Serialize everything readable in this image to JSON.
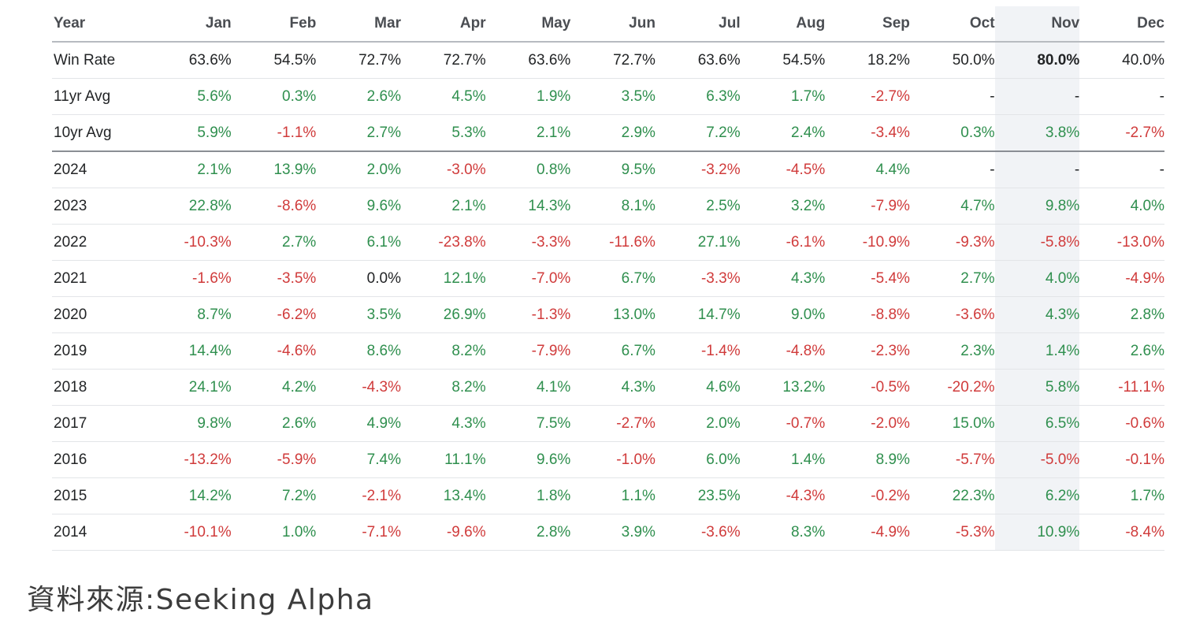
{
  "chart_data": {
    "type": "table",
    "title": "",
    "columns": [
      "Year",
      "Jan",
      "Feb",
      "Mar",
      "Apr",
      "May",
      "Jun",
      "Jul",
      "Aug",
      "Sep",
      "Oct",
      "Nov",
      "Dec"
    ],
    "highlight_column": "Nov",
    "rows": [
      {
        "label": "Win Rate",
        "values": [
          "63.6%",
          "54.5%",
          "72.7%",
          "72.7%",
          "63.6%",
          "72.7%",
          "63.6%",
          "54.5%",
          "18.2%",
          "50.0%",
          "80.0%",
          "40.0%"
        ]
      },
      {
        "label": "11yr Avg",
        "values": [
          "5.6%",
          "0.3%",
          "2.6%",
          "4.5%",
          "1.9%",
          "3.5%",
          "6.3%",
          "1.7%",
          "-2.7%",
          "-",
          "-",
          "-"
        ]
      },
      {
        "label": "10yr Avg",
        "values": [
          "5.9%",
          "-1.1%",
          "2.7%",
          "5.3%",
          "2.1%",
          "2.9%",
          "7.2%",
          "2.4%",
          "-3.4%",
          "0.3%",
          "3.8%",
          "-2.7%"
        ]
      },
      {
        "label": "2024",
        "values": [
          "2.1%",
          "13.9%",
          "2.0%",
          "-3.0%",
          "0.8%",
          "9.5%",
          "-3.2%",
          "-4.5%",
          "4.4%",
          "-",
          "-",
          "-"
        ]
      },
      {
        "label": "2023",
        "values": [
          "22.8%",
          "-8.6%",
          "9.6%",
          "2.1%",
          "14.3%",
          "8.1%",
          "2.5%",
          "3.2%",
          "-7.9%",
          "4.7%",
          "9.8%",
          "4.0%"
        ]
      },
      {
        "label": "2022",
        "values": [
          "-10.3%",
          "2.7%",
          "6.1%",
          "-23.8%",
          "-3.3%",
          "-11.6%",
          "27.1%",
          "-6.1%",
          "-10.9%",
          "-9.3%",
          "-5.8%",
          "-13.0%"
        ]
      },
      {
        "label": "2021",
        "values": [
          "-1.6%",
          "-3.5%",
          "0.0%",
          "12.1%",
          "-7.0%",
          "6.7%",
          "-3.3%",
          "4.3%",
          "-5.4%",
          "2.7%",
          "4.0%",
          "-4.9%"
        ]
      },
      {
        "label": "2020",
        "values": [
          "8.7%",
          "-6.2%",
          "3.5%",
          "26.9%",
          "-1.3%",
          "13.0%",
          "14.7%",
          "9.0%",
          "-8.8%",
          "-3.6%",
          "4.3%",
          "2.8%"
        ]
      },
      {
        "label": "2019",
        "values": [
          "14.4%",
          "-4.6%",
          "8.6%",
          "8.2%",
          "-7.9%",
          "6.7%",
          "-1.4%",
          "-4.8%",
          "-2.3%",
          "2.3%",
          "1.4%",
          "2.6%"
        ]
      },
      {
        "label": "2018",
        "values": [
          "24.1%",
          "4.2%",
          "-4.3%",
          "8.2%",
          "4.1%",
          "4.3%",
          "4.6%",
          "13.2%",
          "-0.5%",
          "-20.2%",
          "5.8%",
          "-11.1%"
        ]
      },
      {
        "label": "2017",
        "values": [
          "9.8%",
          "2.6%",
          "4.9%",
          "4.3%",
          "7.5%",
          "-2.7%",
          "2.0%",
          "-0.7%",
          "-2.0%",
          "15.0%",
          "6.5%",
          "-0.6%"
        ]
      },
      {
        "label": "2016",
        "values": [
          "-13.2%",
          "-5.9%",
          "7.4%",
          "11.1%",
          "9.6%",
          "-1.0%",
          "6.0%",
          "1.4%",
          "8.9%",
          "-5.7%",
          "-5.0%",
          "-0.1%"
        ]
      },
      {
        "label": "2015",
        "values": [
          "14.2%",
          "7.2%",
          "-2.1%",
          "13.4%",
          "1.8%",
          "1.1%",
          "23.5%",
          "-4.3%",
          "-0.2%",
          "22.3%",
          "6.2%",
          "1.7%"
        ]
      },
      {
        "label": "2014",
        "values": [
          "-10.1%",
          "1.0%",
          "-7.1%",
          "-9.6%",
          "2.8%",
          "3.9%",
          "-3.6%",
          "8.3%",
          "-4.9%",
          "-5.3%",
          "10.9%",
          "-8.4%"
        ]
      }
    ]
  },
  "source": "資料來源:Seeking Alpha",
  "colors": {
    "positive": "#2f8f4e",
    "negative": "#d03b3b",
    "neutral": "#222426",
    "highlight_bg": "#f1f3f6"
  }
}
